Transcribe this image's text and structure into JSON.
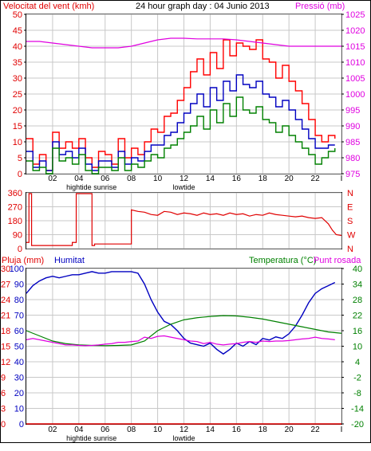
{
  "colors": {
    "wind": "#e00000",
    "gust": "#ff0000",
    "avg_wind": "#0000c0",
    "green": "#008000",
    "pressure": "#e000e0",
    "blue": "#0000c0",
    "grid": "#c8c8c8",
    "axis_black": "#000000"
  },
  "header": {
    "wind_label": "Velocitat del vent (kmh)",
    "title": "24 hour graph day : 04 Junio 2013",
    "pressure_label": "Pressió (mb)"
  },
  "x_axis": {
    "hour_ticks": [
      "02",
      "04",
      "06",
      "08",
      "10",
      "12",
      "14",
      "16",
      "18",
      "20",
      "22",
      "I"
    ],
    "events": [
      {
        "label": "hightide",
        "at": "04"
      },
      {
        "label": "sunrise",
        "at": "06"
      },
      {
        "label": "lowtide",
        "at": "12"
      }
    ]
  },
  "panel3_header": {
    "rain_label": "Pluja (mm)",
    "humidity_label": "Humitat",
    "temp_label": "Temperatura (°C)",
    "dew_label": "Punt rosada"
  },
  "chart_data": [
    {
      "type": "line",
      "name": "wind-pressure",
      "x_unit": "hour",
      "x_range": [
        0,
        24
      ],
      "y_left": {
        "label": "Velocitat del vent (kmh)",
        "ticks": [
          0,
          5,
          10,
          15,
          20,
          25,
          30,
          35,
          40,
          45,
          50
        ],
        "range": [
          0,
          50
        ]
      },
      "y_right": {
        "label": "Pressió (mb)",
        "ticks": [
          975,
          980,
          985,
          990,
          995,
          1000,
          1005,
          1010,
          1015,
          1020,
          1025
        ],
        "range": [
          975,
          1025
        ]
      },
      "series": [
        {
          "role": "gust",
          "axis": "left",
          "color": "#ff0000",
          "x": [
            0,
            0.5,
            1,
            1.5,
            2,
            2.5,
            3,
            3.5,
            4,
            4.5,
            5,
            5.5,
            6,
            6.5,
            7,
            7.5,
            8,
            8.5,
            9,
            9.5,
            10,
            10.5,
            11,
            11.5,
            12,
            12.5,
            13,
            13.5,
            14,
            14.5,
            15,
            15.5,
            16,
            16.5,
            17,
            17.5,
            18,
            18.5,
            19,
            19.5,
            20,
            20.5,
            21,
            21.5,
            22,
            22.5,
            23,
            23.5
          ],
          "y": [
            11,
            3,
            6,
            1,
            13,
            8,
            10,
            8,
            11,
            5,
            2,
            7,
            6,
            3,
            11,
            5,
            8,
            6,
            10,
            14,
            13,
            18,
            19,
            23,
            27,
            32,
            36,
            31,
            38,
            33,
            42,
            37,
            41,
            40,
            39,
            42,
            36,
            35,
            30,
            34,
            29,
            26,
            22,
            17,
            12,
            10,
            12,
            11
          ]
        },
        {
          "role": "average",
          "axis": "left",
          "color": "#0000c0",
          "x": [
            0,
            0.5,
            1,
            1.5,
            2,
            2.5,
            3,
            3.5,
            4,
            4.5,
            5,
            5.5,
            6,
            6.5,
            7,
            7.5,
            8,
            8.5,
            9,
            9.5,
            10,
            10.5,
            11,
            11.5,
            12,
            12.5,
            13,
            13.5,
            14,
            14.5,
            15,
            15.5,
            16,
            16.5,
            17,
            17.5,
            18,
            18.5,
            19,
            19.5,
            20,
            20.5,
            21,
            21.5,
            22,
            22.5,
            23,
            23.5
          ],
          "y": [
            7,
            2,
            4,
            1,
            10,
            6,
            7,
            5,
            8,
            3,
            1,
            4,
            4,
            2,
            7,
            3,
            5,
            4,
            7,
            9,
            9,
            12,
            13,
            16,
            19,
            22,
            25,
            21,
            27,
            23,
            29,
            26,
            31,
            28,
            27,
            29,
            25,
            24,
            21,
            23,
            20,
            17,
            14,
            11,
            8,
            8,
            9,
            9
          ]
        },
        {
          "role": "minimum",
          "axis": "left",
          "color": "#008000",
          "x": [
            0,
            0.5,
            1,
            1.5,
            2,
            2.5,
            3,
            3.5,
            4,
            4.5,
            5,
            5.5,
            6,
            6.5,
            7,
            7.5,
            8,
            8.5,
            9,
            9.5,
            10,
            10.5,
            11,
            11.5,
            12,
            12.5,
            13,
            13.5,
            14,
            14.5,
            15,
            15.5,
            16,
            16.5,
            17,
            17.5,
            18,
            18.5,
            19,
            19.5,
            20,
            20.5,
            21,
            21.5,
            22,
            22.5,
            23,
            23.5
          ],
          "y": [
            4,
            1,
            2,
            0,
            8,
            4,
            5,
            3,
            6,
            1,
            0,
            2,
            2,
            1,
            5,
            1,
            3,
            2,
            4,
            6,
            5,
            8,
            9,
            11,
            13,
            15,
            18,
            14,
            20,
            16,
            22,
            18,
            24,
            20,
            19,
            21,
            17,
            16,
            13,
            15,
            12,
            10,
            8,
            6,
            3,
            5,
            7,
            8
          ]
        },
        {
          "role": "pressure",
          "axis": "right",
          "color": "#e000e0",
          "x": [
            0,
            1,
            2,
            3,
            4,
            5,
            6,
            7,
            8,
            9,
            10,
            11,
            12,
            13,
            14,
            15,
            16,
            17,
            18,
            19,
            20,
            21,
            22,
            23,
            24
          ],
          "y": [
            1016.5,
            1016.5,
            1016,
            1015.5,
            1015,
            1014.5,
            1014.5,
            1014.5,
            1015,
            1016,
            1017,
            1017.5,
            1017.5,
            1017.3,
            1017.3,
            1017.3,
            1017,
            1016.5,
            1016,
            1015.5,
            1015,
            1015,
            1015,
            1015,
            1015
          ]
        }
      ]
    },
    {
      "type": "line",
      "name": "wind-direction",
      "x_unit": "hour",
      "y_left": {
        "ticks": [
          0,
          90,
          180,
          270,
          360
        ],
        "range": [
          0,
          360
        ]
      },
      "y_right": {
        "ticks": [
          "N",
          "W",
          "S",
          "E",
          "N"
        ]
      },
      "series": [
        {
          "role": "direction",
          "color": "#e00000",
          "x": [
            0,
            0.2,
            0.2,
            0.4,
            0.4,
            3.5,
            3.5,
            3.8,
            3.8,
            4.0,
            4.0,
            5.0,
            5.0,
            5.2,
            5.2,
            8.0,
            8.0,
            8.5,
            9,
            9.5,
            10,
            10.5,
            11,
            11.5,
            12,
            12.5,
            13,
            13.5,
            14,
            14.5,
            15,
            15.5,
            16,
            16.5,
            17,
            17.5,
            18,
            18.5,
            19,
            19.5,
            20,
            20.5,
            21,
            21.5,
            22,
            22.5,
            23,
            23.3,
            23.6,
            24
          ],
          "y": [
            40,
            40,
            355,
            355,
            20,
            20,
            40,
            40,
            355,
            355,
            355,
            355,
            20,
            20,
            30,
            30,
            250,
            240,
            235,
            220,
            215,
            240,
            235,
            220,
            230,
            225,
            215,
            230,
            220,
            225,
            215,
            230,
            220,
            225,
            210,
            220,
            215,
            230,
            220,
            215,
            210,
            205,
            210,
            200,
            195,
            200,
            160,
            120,
            90,
            85
          ]
        }
      ]
    },
    {
      "type": "line",
      "name": "rain-humidity-temperature",
      "x_unit": "hour",
      "y_rain": {
        "label": "Pluja (mm)",
        "ticks": [
          0,
          3,
          6,
          9,
          12,
          15,
          18,
          21,
          24,
          27,
          30
        ],
        "range": [
          0,
          30
        ]
      },
      "y_humidity": {
        "label": "Humitat",
        "ticks": [
          0,
          10,
          20,
          30,
          40,
          50,
          60,
          70,
          80,
          90,
          100
        ],
        "range": [
          0,
          100
        ]
      },
      "y_temp": {
        "label": "Temperatura (°C)",
        "ticks": [
          -20,
          -14,
          -8,
          -2,
          4,
          10,
          16,
          22,
          28,
          34,
          40
        ],
        "range": [
          -20,
          40
        ]
      },
      "series": [
        {
          "role": "rain",
          "axis": "rain",
          "color": "#e00000",
          "x": [
            0,
            24
          ],
          "y": [
            0,
            0
          ]
        },
        {
          "role": "humidity",
          "axis": "humidity",
          "color": "#0000c0",
          "x": [
            0,
            0.5,
            1,
            1.5,
            2,
            2.5,
            3,
            3.5,
            4,
            4.5,
            5,
            5.5,
            6,
            6.5,
            7,
            7.5,
            8,
            8.5,
            9,
            9.5,
            10,
            10.5,
            11,
            11.5,
            12,
            12.5,
            13,
            13.5,
            14,
            14.5,
            15,
            15.5,
            16,
            16.5,
            17,
            17.5,
            18,
            18.5,
            19,
            19.5,
            20,
            20.5,
            21,
            21.5,
            22,
            22.5,
            23,
            23.5
          ],
          "y": [
            84,
            89,
            92,
            94,
            95,
            94,
            95,
            96,
            96,
            97,
            98,
            97,
            97,
            98,
            98,
            98,
            98,
            97,
            90,
            80,
            72,
            66,
            64,
            60,
            55,
            52,
            51,
            50,
            52,
            48,
            45,
            48,
            52,
            50,
            53,
            51,
            55,
            54,
            56,
            55,
            58,
            63,
            70,
            78,
            84,
            87,
            89,
            91
          ]
        },
        {
          "role": "temperature",
          "axis": "temp",
          "color": "#008000",
          "x": [
            0,
            1,
            2,
            3,
            4,
            5,
            6,
            7,
            8,
            9,
            10,
            11,
            12,
            13,
            14,
            15,
            16,
            17,
            18,
            19,
            20,
            21,
            22,
            23,
            24
          ],
          "y": [
            16,
            14,
            12,
            11,
            10.5,
            10.3,
            10.2,
            10.3,
            10.5,
            12,
            16,
            18.5,
            20.2,
            21,
            21.5,
            21.8,
            21.7,
            21.2,
            20.5,
            19.5,
            18.5,
            17.5,
            16.5,
            15.5,
            15
          ]
        },
        {
          "role": "dew-point",
          "axis": "temp",
          "color": "#e000e0",
          "x": [
            0,
            0.5,
            1,
            1.5,
            2,
            2.5,
            3,
            3.5,
            4,
            4.5,
            5,
            5.5,
            6,
            6.5,
            7,
            7.5,
            8,
            8.5,
            9,
            9.5,
            10,
            10.5,
            11,
            11.5,
            12,
            12.5,
            13,
            13.5,
            14,
            14.5,
            15,
            15.5,
            16,
            16.5,
            17,
            17.5,
            18,
            18.5,
            19,
            19.5,
            20,
            20.5,
            21,
            21.5,
            22,
            22.5,
            23,
            23.5
          ],
          "y": [
            12.5,
            13,
            12.5,
            12,
            11.5,
            11,
            10.5,
            10.5,
            10.3,
            10.2,
            10.3,
            10.5,
            10.8,
            11,
            11.5,
            11.5,
            11.8,
            12,
            13.5,
            13,
            13.8,
            14,
            13.5,
            13,
            12.5,
            12,
            11.8,
            11,
            11.5,
            10.8,
            10.5,
            10.8,
            11,
            11.5,
            11.8,
            11.5,
            12,
            11.8,
            12,
            12,
            12.2,
            12.5,
            12.8,
            13,
            13.5,
            13,
            12.8,
            12.5
          ]
        }
      ]
    }
  ]
}
